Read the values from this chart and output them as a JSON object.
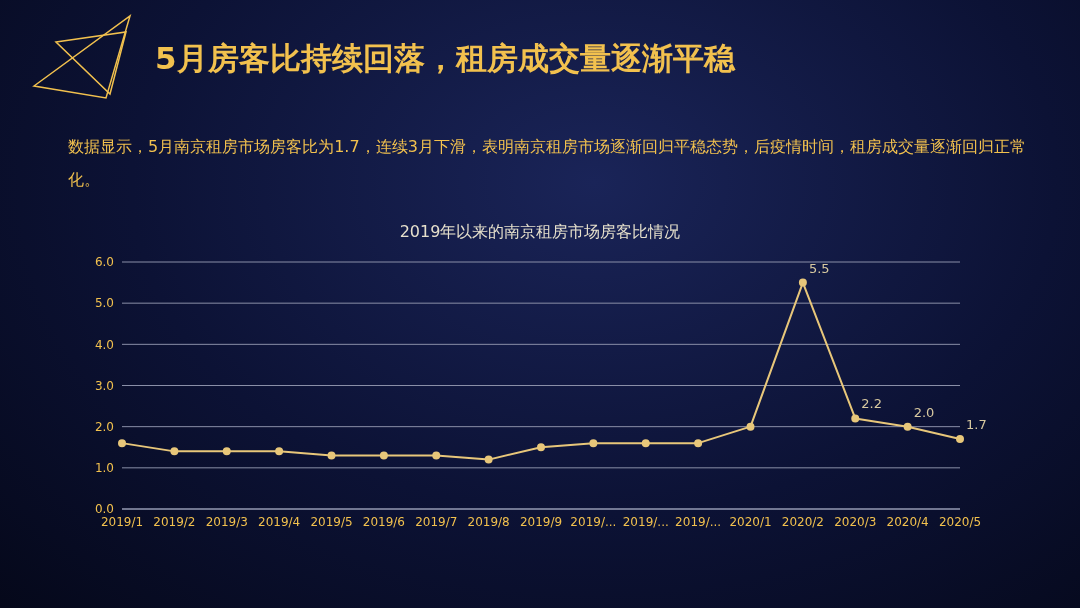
{
  "chart_data": {
    "type": "line",
    "title": "5月房客比持续回落，租房成交量逐渐平稳",
    "subtitle": "数据显示，5月南京租房市场房客比为1.7，连续3月下滑，表明南京租房市场逐渐回归平稳态势，后疫情时间，租房成交量逐渐回归正常化。",
    "annotations": [
      "2019年以来的南京租房市场房客比情况"
    ],
    "categories": [
      "2019/1",
      "2019/2",
      "2019/3",
      "2019/4",
      "2019/5",
      "2019/6",
      "2019/7",
      "2019/8",
      "2019/9",
      "2019/...",
      "2019/...",
      "2019/...",
      "2020/1",
      "2020/2",
      "2020/3",
      "2020/4",
      "2020/5"
    ],
    "series": [
      {
        "color": "#e8c77a",
        "values": [
          1.6,
          1.4,
          1.4,
          1.4,
          1.3,
          1.3,
          1.3,
          1.2,
          1.5,
          1.6,
          1.6,
          1.6,
          2.0,
          5.5,
          2.2,
          2.0,
          1.7
        ],
        "value_labels": [
          null,
          null,
          null,
          null,
          null,
          null,
          null,
          null,
          null,
          null,
          null,
          null,
          null,
          "5.5",
          "2.2",
          "2.0",
          "1.7"
        ]
      }
    ],
    "ylim": [
      0,
      6
    ],
    "yticks": [
      {
        "value": 0,
        "label": "0.0"
      },
      {
        "value": 1,
        "label": "1.0"
      },
      {
        "value": 2,
        "label": "2.0"
      },
      {
        "value": 3,
        "label": "3.0"
      },
      {
        "value": 4,
        "label": "4.0"
      },
      {
        "value": 5,
        "label": "5.0"
      },
      {
        "value": 6,
        "label": "6.0"
      }
    ],
    "grid": "y",
    "marker": "circle",
    "line_style": "solid",
    "legend": false
  }
}
